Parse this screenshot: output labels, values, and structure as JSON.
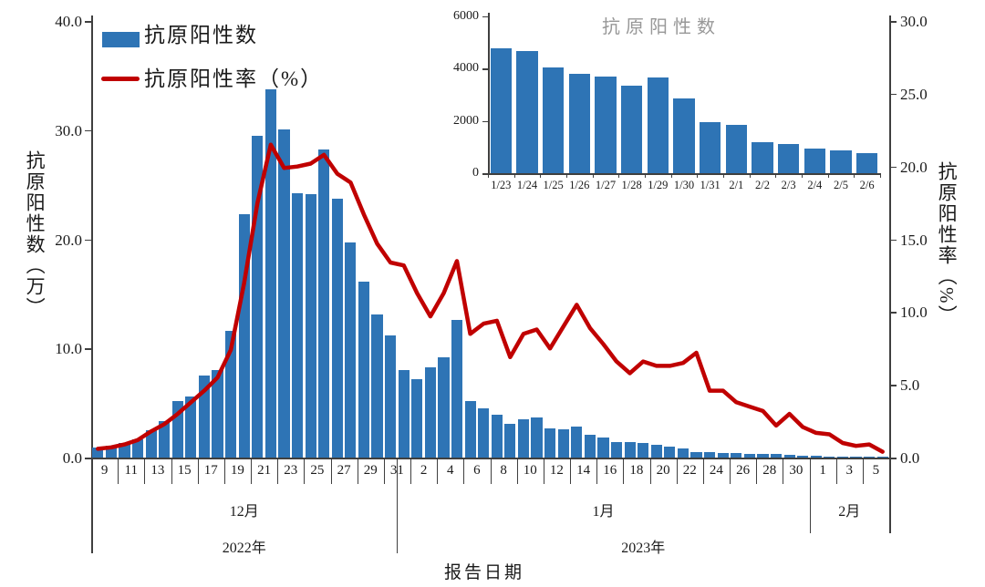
{
  "colors": {
    "bar_blue": "#2E74B5",
    "line_red": "#C00000",
    "inset_title_gray": "#989898",
    "text": "#1a1a1a",
    "axis": "#3f3f3f"
  },
  "legend": {
    "items": [
      {
        "label": "抗原阳性数",
        "marker": "bar"
      },
      {
        "label": "抗原阳性率（%）",
        "marker": "line"
      }
    ]
  },
  "chart_data": [
    {
      "type": "bar+line",
      "x": [
        "12/9",
        "12/10",
        "12/11",
        "12/12",
        "12/13",
        "12/14",
        "12/15",
        "12/16",
        "12/17",
        "12/18",
        "12/19",
        "12/20",
        "12/21",
        "12/22",
        "12/23",
        "12/24",
        "12/25",
        "12/26",
        "12/27",
        "12/28",
        "12/29",
        "12/30",
        "12/31",
        "1/1",
        "1/2",
        "1/3",
        "1/4",
        "1/5",
        "1/6",
        "1/7",
        "1/8",
        "1/9",
        "1/10",
        "1/11",
        "1/12",
        "1/13",
        "1/14",
        "1/15",
        "1/16",
        "1/17",
        "1/18",
        "1/19",
        "1/20",
        "1/21",
        "1/22",
        "1/23",
        "1/24",
        "1/25",
        "1/26",
        "1/27",
        "1/28",
        "1/29",
        "1/30",
        "1/31",
        "2/1",
        "2/2",
        "2/3",
        "2/4",
        "2/5",
        "2/6"
      ],
      "series": [
        {
          "name": "抗原阳性数",
          "type": "bar",
          "axis": "left",
          "unit": "万",
          "values": [
            0.9,
            1.1,
            1.3,
            1.7,
            2.5,
            3.3,
            5.2,
            5.6,
            7.5,
            8.0,
            11.6,
            22.3,
            29.5,
            33.7,
            30.1,
            24.2,
            24.1,
            28.2,
            23.7,
            19.7,
            16.1,
            13.1,
            11.2,
            8.0,
            7.2,
            8.3,
            9.2,
            12.6,
            5.2,
            4.5,
            3.9,
            3.1,
            3.5,
            3.7,
            2.7,
            2.6,
            2.8,
            2.1,
            1.8,
            1.4,
            1.4,
            1.3,
            1.2,
            1.0,
            0.8,
            0.48,
            0.47,
            0.41,
            0.38,
            0.37,
            0.34,
            0.37,
            0.29,
            0.2,
            0.19,
            0.12,
            0.11,
            0.1,
            0.09,
            0.08
          ]
        },
        {
          "name": "抗原阳性率（%）",
          "type": "line",
          "axis": "right",
          "unit": "%",
          "values": [
            0.6,
            0.7,
            0.9,
            1.2,
            1.8,
            2.3,
            3.0,
            3.8,
            4.6,
            5.5,
            7.4,
            12.0,
            17.5,
            21.5,
            19.9,
            20.0,
            20.2,
            20.8,
            19.5,
            18.9,
            16.7,
            14.7,
            13.4,
            13.2,
            11.3,
            9.7,
            11.3,
            13.5,
            8.5,
            9.2,
            9.4,
            6.9,
            8.5,
            8.8,
            7.5,
            9.0,
            10.5,
            8.9,
            7.8,
            6.6,
            5.8,
            6.6,
            6.3,
            6.3,
            6.5,
            7.2,
            4.6,
            4.6,
            3.8,
            3.5,
            3.2,
            2.2,
            3.0,
            2.1,
            1.7,
            1.6,
            1.0,
            0.8,
            0.9,
            0.4
          ]
        }
      ],
      "left_axis": {
        "label": "抗原阳性数（万）",
        "max": 40,
        "ticks": [
          0,
          10,
          20,
          30,
          40
        ],
        "tick_labels": [
          "0.0",
          "10.0",
          "20.0",
          "30.0",
          "40.0"
        ]
      },
      "right_axis": {
        "label": "抗原阳性率（%）",
        "max": 30,
        "ticks": [
          0,
          5,
          10,
          15,
          20,
          25,
          30
        ],
        "tick_labels": [
          "0.0",
          "5.0",
          "10.0",
          "15.0",
          "20.0",
          "25.0",
          "30.0"
        ]
      },
      "x_axis": {
        "title": "报告日期",
        "tick_labels": [
          "9",
          "11",
          "13",
          "15",
          "17",
          "19",
          "21",
          "23",
          "25",
          "27",
          "29",
          "31",
          "2",
          "4",
          "6",
          "8",
          "10",
          "12",
          "14",
          "16",
          "18",
          "20",
          "22",
          "24",
          "26",
          "28",
          "30",
          "1",
          "3",
          "5"
        ],
        "month_groups": [
          {
            "label": "12月",
            "span_days": 23
          },
          {
            "label": "1月",
            "span_days": 31
          },
          {
            "label": "2月",
            "span_days": 6
          }
        ],
        "year_groups": [
          {
            "label": "2022年",
            "span_days": 23
          },
          {
            "label": "2023年",
            "span_days": 37
          }
        ]
      }
    },
    {
      "type": "bar",
      "title": "抗原阳性数",
      "categories": [
        "1/23",
        "1/24",
        "1/25",
        "1/26",
        "1/27",
        "1/28",
        "1/29",
        "1/30",
        "1/31",
        "2/1",
        "2/2",
        "2/3",
        "2/4",
        "2/5",
        "2/6"
      ],
      "values": [
        4750,
        4650,
        4050,
        3800,
        3700,
        3350,
        3650,
        2850,
        1950,
        1850,
        1200,
        1100,
        950,
        880,
        780
      ],
      "ylim": [
        0,
        6000
      ],
      "ytick_values": [
        0,
        2000,
        4000,
        6000
      ],
      "ytick_labels": [
        "0",
        "2000",
        "4000",
        "6000"
      ],
      "legend_position": "none",
      "grid": false
    }
  ]
}
